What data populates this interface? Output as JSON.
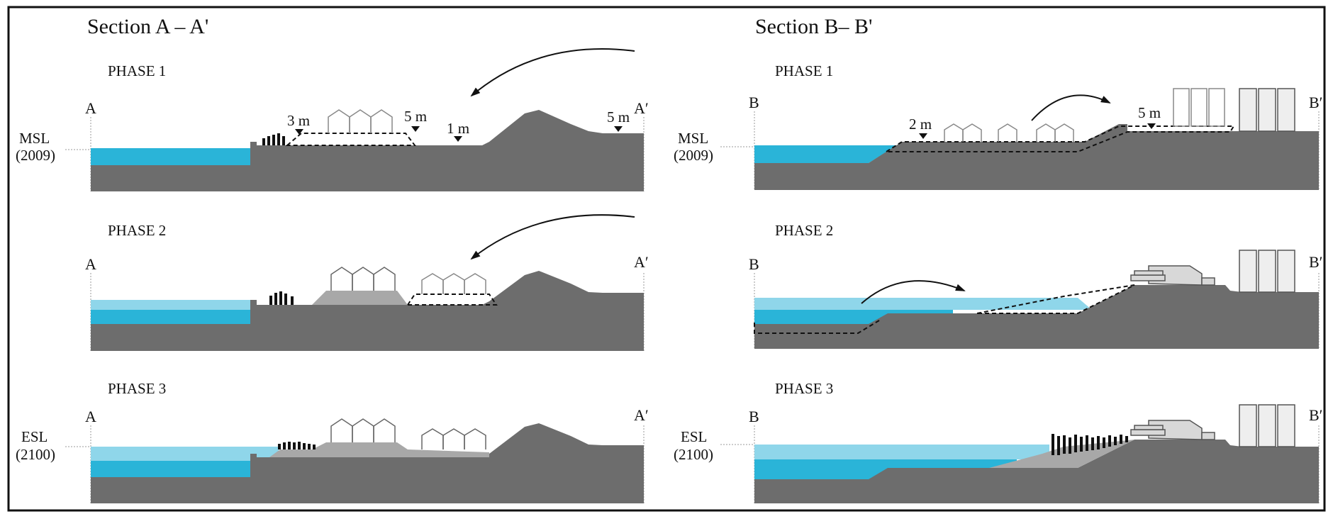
{
  "sections": [
    {
      "title": "Section A – A'",
      "left_label": "A",
      "right_label": "A′",
      "phases": [
        {
          "label": "PHASE 1",
          "sea_level_label": [
            "MSL",
            "(2009)"
          ],
          "marks": [
            "3 m",
            "5 m",
            "1 m",
            "5 m"
          ]
        },
        {
          "label": "PHASE 2"
        },
        {
          "label": "PHASE 3",
          "sea_level_label": [
            "ESL",
            "(2100)"
          ]
        }
      ]
    },
    {
      "title": "Section B– B'",
      "left_label": "B",
      "right_label": "B′",
      "phases": [
        {
          "label": "PHASE 1",
          "sea_level_label": [
            "MSL",
            "(2009)"
          ],
          "marks": [
            "2 m",
            "5 m"
          ]
        },
        {
          "label": "PHASE 2"
        },
        {
          "label": "PHASE 3",
          "sea_level_label": [
            "ESL",
            "(2100)"
          ]
        }
      ]
    }
  ],
  "colors": {
    "ground": "#6d6d6d",
    "fill": "#a8a8a8",
    "water_deep": "#2ab4d8",
    "water_light": "#8fd6ea",
    "outline": "#111111"
  }
}
